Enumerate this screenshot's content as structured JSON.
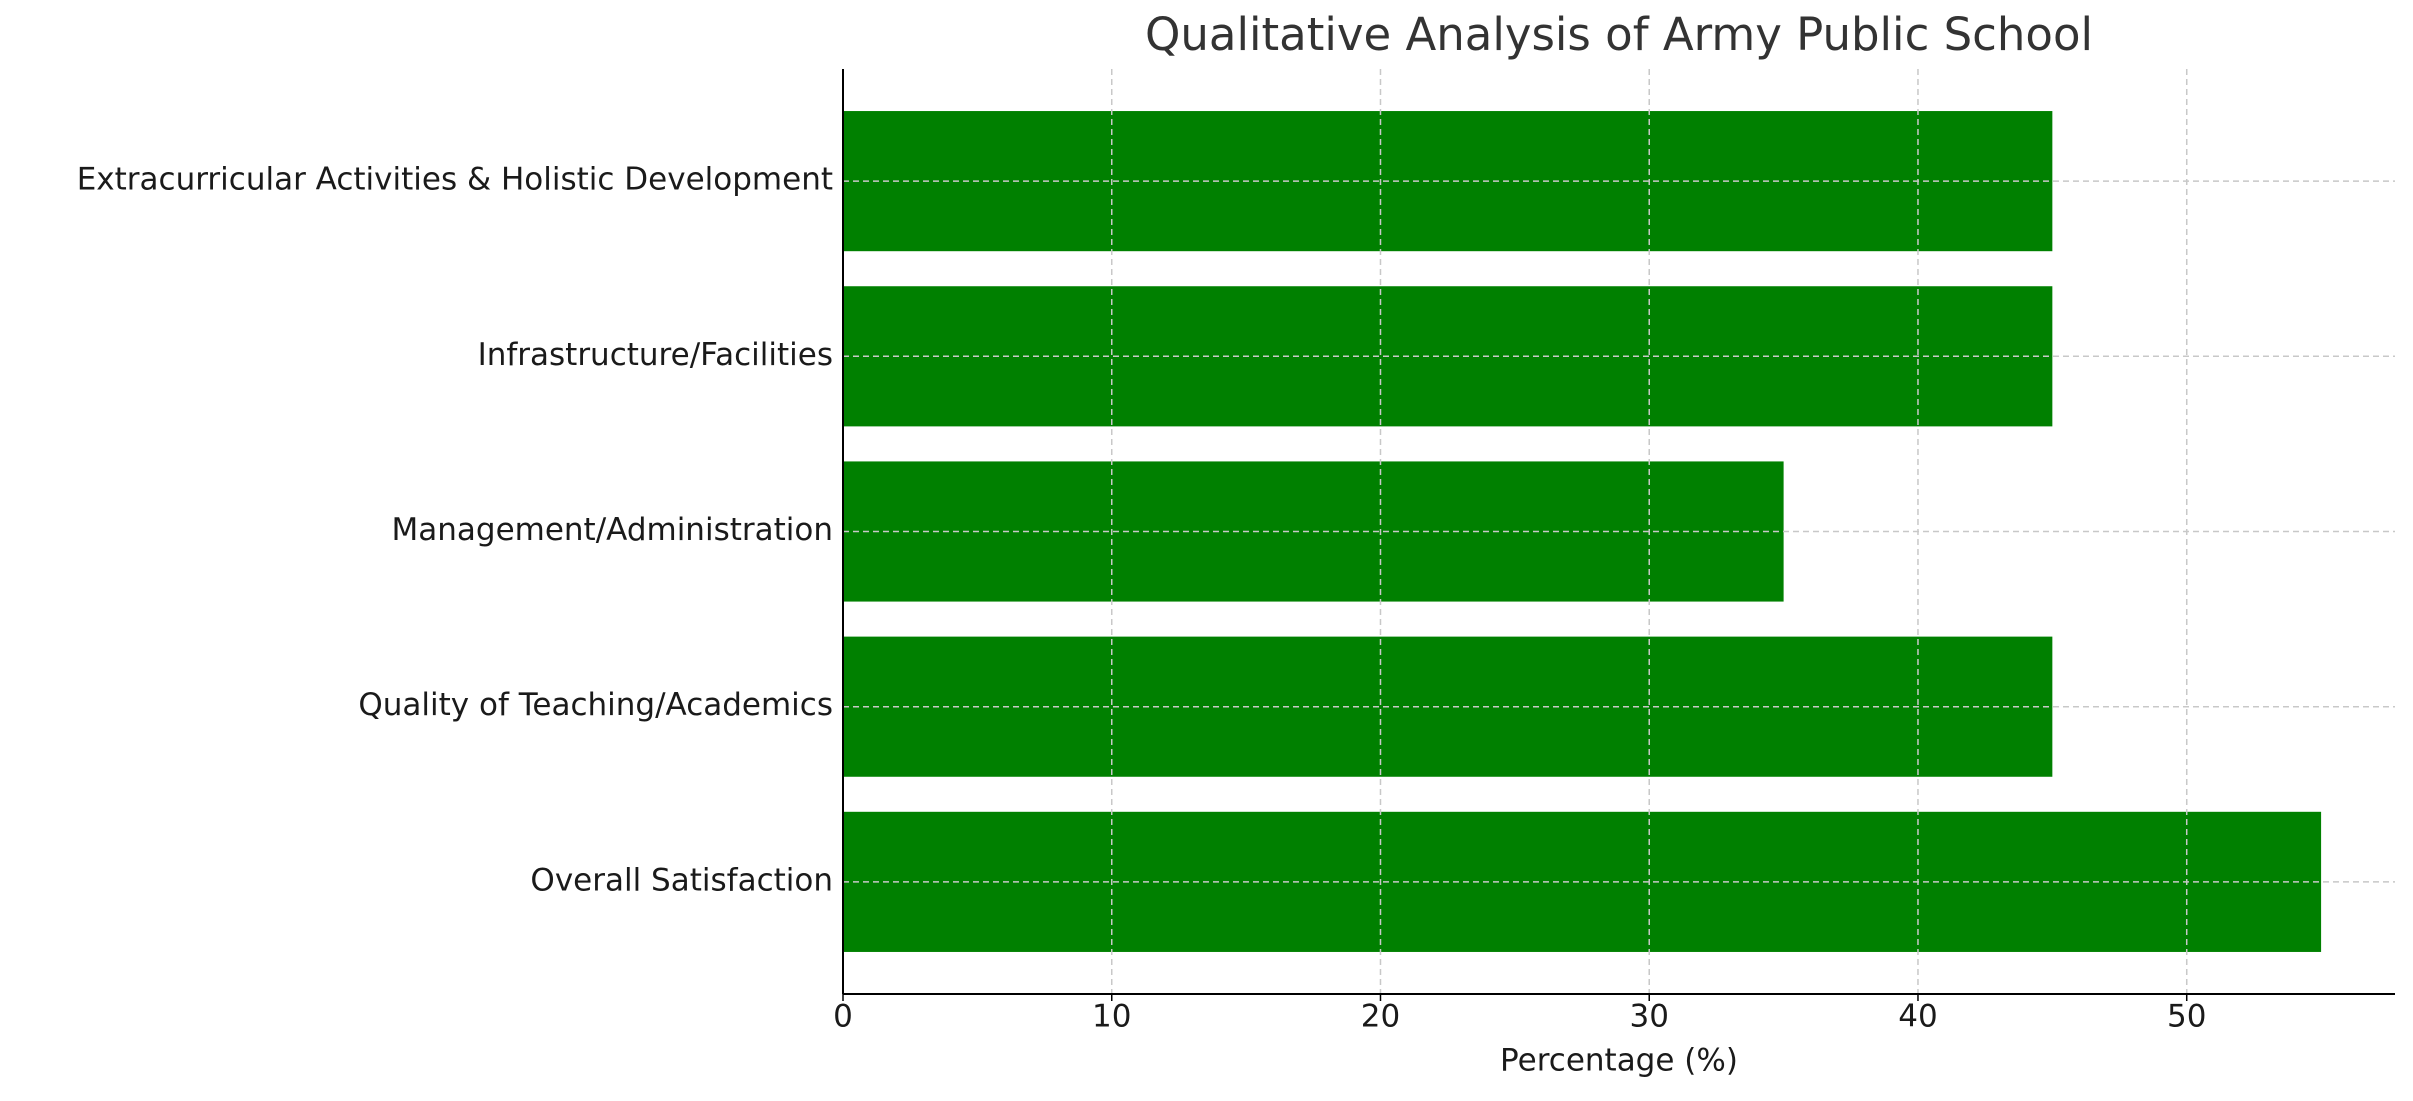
{
  "chart_data": {
    "type": "barh",
    "title": "Qualitative Analysis of Army Public School",
    "x_label": "Percentage (%)",
    "categories": [
      "Overall Satisfaction",
      "Quality of Teaching/Academics",
      "Management/Administration",
      "Infrastructure/Facilities",
      "Extracurricular Activities & Holistic Development"
    ],
    "values": [
      55,
      45,
      35,
      45,
      45
    ],
    "color": "#008000",
    "xlim": [
      0,
      57.75
    ],
    "xticks": [
      0,
      10,
      20,
      30,
      40,
      50
    ],
    "grid": true
  }
}
